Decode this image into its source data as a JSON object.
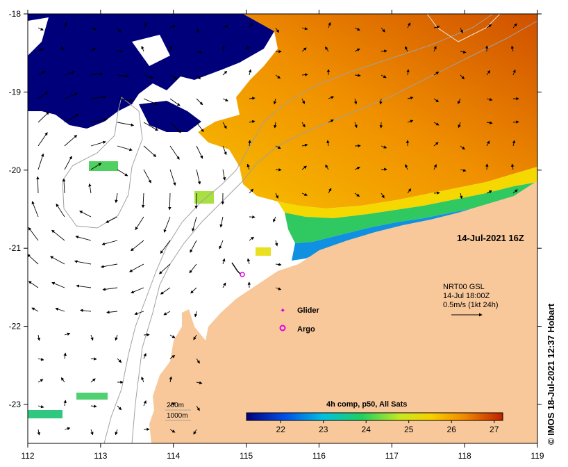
{
  "map": {
    "x_ticks": [
      "112",
      "113",
      "114",
      "115",
      "116",
      "117",
      "118",
      "119"
    ],
    "y_ticks": [
      "-18",
      "-19",
      "-20",
      "-21",
      "-22",
      "-23"
    ],
    "date_label": "14-Jul-2021 16Z",
    "current_block": {
      "line1": "NRT00 GSL",
      "line2": "14-Jul 18:00Z",
      "line3": "0.5m/s (1kt 24h)"
    },
    "legend": {
      "glider": "Glider",
      "argo": "Argo",
      "glider_color": "#d400d4",
      "argo_color": "#e000e0"
    },
    "isobaths": {
      "contour_200": "200m",
      "contour_1000": "1000m"
    },
    "colorbar": {
      "title": "4h comp, p50, All Sats",
      "ticks": [
        "22",
        "23",
        "24",
        "25",
        "26",
        "27"
      ],
      "min": 21.2,
      "max": 27.2
    },
    "credit": "© IMOS 18-Jul-2021 12:37 Hobart",
    "colors": {
      "cloud_mask": "#00007a",
      "land": "#f8c89a",
      "sea_no_data": "#ffffff"
    }
  }
}
